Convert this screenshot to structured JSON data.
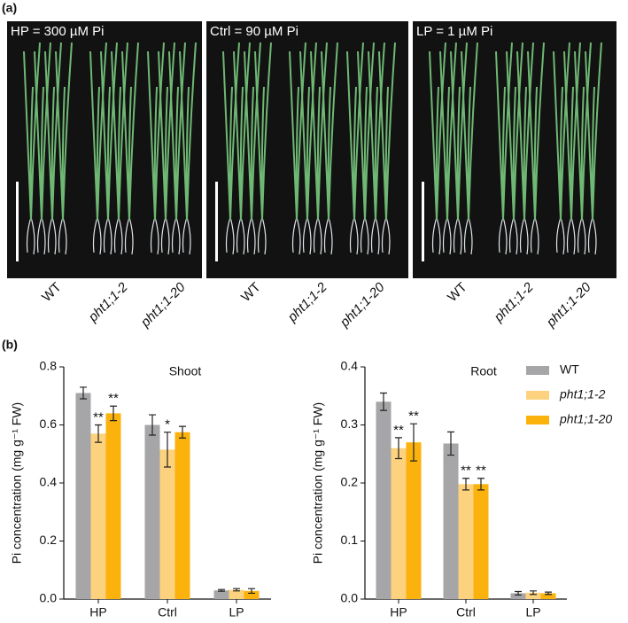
{
  "panel_a": {
    "label": "(a)",
    "panels": [
      {
        "title": "HP = 300 µM Pi",
        "genotypes": [
          "WT",
          "pht1;1-2",
          "pht1;1-20"
        ]
      },
      {
        "title": "Ctrl = 90 µM Pi",
        "genotypes": [
          "WT",
          "pht1;1-2",
          "pht1;1-20"
        ]
      },
      {
        "title": "LP = 1 µM Pi",
        "genotypes": [
          "WT",
          "pht1;1-2",
          "pht1;1-20"
        ]
      }
    ]
  },
  "panel_b_label": "(b)",
  "chart_data": [
    {
      "type": "bar",
      "title": "Shoot",
      "y_label": "Pi concentration (mg g⁻¹ FW)",
      "categories": [
        "HP",
        "Ctrl",
        "LP"
      ],
      "series": [
        {
          "color": "#a6a6a8",
          "values": [
            0.71,
            0.6,
            0.03
          ],
          "errors": [
            0.02,
            0.035,
            0.003
          ],
          "labels": [
            null,
            null,
            null
          ]
        },
        {
          "color": "#fdd27e",
          "values": [
            0.57,
            0.515,
            0.032
          ],
          "errors": [
            0.03,
            0.06,
            0.004
          ],
          "labels": [
            "**",
            "*",
            null
          ]
        },
        {
          "color": "#fbb20d",
          "values": [
            0.64,
            0.575,
            0.028
          ],
          "errors": [
            0.025,
            0.02,
            0.008
          ],
          "labels": [
            "**",
            null,
            null
          ]
        }
      ],
      "ylim": [
        0,
        0.8
      ],
      "yticks": [
        {
          "value": 0,
          "label": "0.0"
        },
        0.2,
        0.4,
        0.6,
        0.8
      ]
    },
    {
      "type": "bar",
      "title": "Root",
      "y_label": "Pi concentration (mg g⁻¹ FW)",
      "categories": [
        "HP",
        "Ctrl",
        "LP"
      ],
      "series": [
        {
          "name": "WT",
          "color": "#a6a6a8",
          "values": [
            0.34,
            0.268,
            0.01
          ],
          "errors": [
            0.015,
            0.02,
            0.003
          ],
          "labels": [
            null,
            null,
            null
          ]
        },
        {
          "name": "pht1;1-2",
          "color": "#fdd27e",
          "values": [
            0.26,
            0.198,
            0.011
          ],
          "errors": [
            0.018,
            0.01,
            0.003
          ],
          "labels": [
            "**",
            "**",
            null
          ]
        },
        {
          "name": "pht1;1-20",
          "color": "#fbb20d",
          "values": [
            0.27,
            0.198,
            0.01
          ],
          "errors": [
            0.032,
            0.01,
            0.002
          ],
          "labels": [
            "**",
            "**",
            null
          ]
        }
      ],
      "ylim": [
        0,
        0.4
      ],
      "yticks": [
        {
          "value": 0,
          "label": "0.0"
        },
        0.1,
        0.2,
        0.3,
        0.4
      ],
      "legend": "right"
    }
  ]
}
